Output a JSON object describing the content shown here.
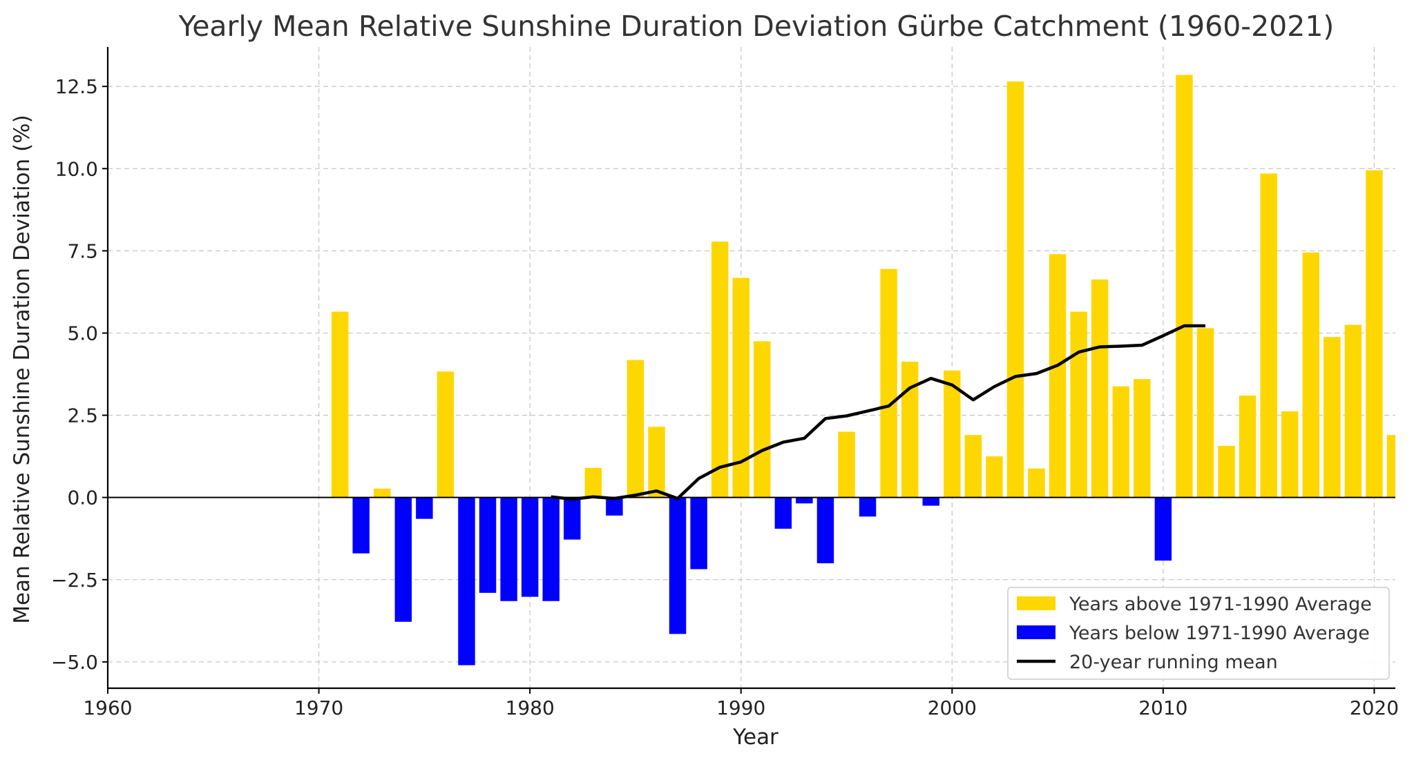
{
  "chart_data": {
    "type": "bar",
    "title": "Yearly Mean Relative Sunshine Duration Deviation Gürbe Catchment (1960-2021)",
    "xlabel": "Year",
    "ylabel": "Mean Relative Sunshine Duration Deviation (%)",
    "xlim": [
      1960,
      2021
    ],
    "ylim": [
      -5.8,
      13.7
    ],
    "xticks": [
      1960,
      1970,
      1980,
      1990,
      2000,
      2010,
      2020
    ],
    "xtick_labels": [
      "1960",
      "1970",
      "1980",
      "1990",
      "2000",
      "2010",
      "2020"
    ],
    "yticks": [
      -5.0,
      -2.5,
      0.0,
      2.5,
      5.0,
      7.5,
      10.0,
      12.5
    ],
    "ytick_labels": [
      "−5.0",
      "−2.5",
      "0.0",
      "2.5",
      "5.0",
      "7.5",
      "10.0",
      "12.5"
    ],
    "grid": true,
    "legend_position": "lower-right",
    "colors": {
      "above": "#FFD700",
      "below": "#0000FF",
      "running_mean": "#000000"
    },
    "legend": [
      {
        "label": "Years above 1971-1990 Average",
        "kind": "patch",
        "color": "#FFD700"
      },
      {
        "label": "Years below 1971-1990 Average",
        "kind": "patch",
        "color": "#0000FF"
      },
      {
        "label": "20-year running mean",
        "kind": "line",
        "color": "#000000"
      }
    ],
    "series": [
      {
        "name": "Years above/below 1971-1990 Average",
        "type": "bar",
        "x": [
          1971,
          1972,
          1973,
          1974,
          1975,
          1976,
          1977,
          1978,
          1979,
          1980,
          1981,
          1982,
          1983,
          1984,
          1985,
          1986,
          1987,
          1988,
          1989,
          1990,
          1991,
          1992,
          1993,
          1994,
          1995,
          1996,
          1997,
          1998,
          1999,
          2000,
          2001,
          2002,
          2003,
          2004,
          2005,
          2006,
          2007,
          2008,
          2009,
          2010,
          2011,
          2012,
          2013,
          2014,
          2015,
          2016,
          2017,
          2018,
          2019,
          2020,
          2021
        ],
        "values": [
          5.65,
          -1.7,
          0.27,
          -3.78,
          -0.65,
          3.83,
          -5.1,
          -2.9,
          -3.15,
          -3.02,
          -3.15,
          -1.28,
          0.9,
          -0.55,
          4.18,
          2.15,
          -4.15,
          -2.18,
          7.78,
          6.68,
          4.75,
          -0.95,
          -0.18,
          -2.0,
          2.0,
          -0.58,
          6.95,
          4.13,
          -0.25,
          3.86,
          1.9,
          1.25,
          12.65,
          0.88,
          7.4,
          5.65,
          6.63,
          3.38,
          3.6,
          -1.92,
          12.85,
          5.15,
          1.57,
          3.1,
          9.85,
          2.62,
          7.45,
          4.88,
          5.25,
          9.95,
          1.9
        ]
      },
      {
        "name": "20-year running mean",
        "type": "line",
        "x": [
          1981,
          1982,
          1983,
          1984,
          1985,
          1986,
          1987,
          1988,
          1989,
          1990,
          1991,
          1992,
          1993,
          1994,
          1995,
          1996,
          1997,
          1998,
          1999,
          2000,
          2001,
          2002,
          2003,
          2004,
          2005,
          2006,
          2007,
          2008,
          2009,
          2010,
          2011,
          2012
        ],
        "values": [
          0.02,
          -0.05,
          0.02,
          -0.03,
          0.07,
          0.2,
          -0.03,
          0.58,
          0.92,
          1.08,
          1.43,
          1.68,
          1.8,
          2.4,
          2.48,
          2.63,
          2.78,
          3.33,
          3.62,
          3.42,
          2.97,
          3.37,
          3.68,
          3.77,
          4.02,
          4.42,
          4.58,
          4.6,
          4.63,
          4.92,
          5.22,
          5.22
        ]
      }
    ]
  }
}
